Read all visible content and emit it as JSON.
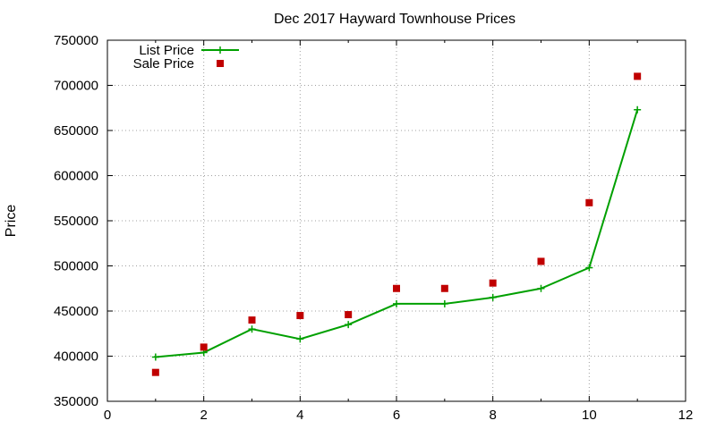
{
  "chart_data": {
    "type": "line",
    "title": "Dec 2017 Hayward Townhouse Prices",
    "xlabel": "",
    "ylabel": "Price",
    "xlim": [
      0,
      12
    ],
    "ylim": [
      350000,
      750000
    ],
    "xticks": [
      "0",
      "2",
      "4",
      "6",
      "8",
      "10",
      "12"
    ],
    "yticks": [
      "350000",
      "400000",
      "450000",
      "500000",
      "550000",
      "600000",
      "650000",
      "700000",
      "750000"
    ],
    "grid": true,
    "legend_position": "top-left",
    "series": [
      {
        "name": "List Price",
        "style": "linespoints",
        "marker": "plus",
        "color": "#00a000",
        "x": [
          1,
          2,
          3,
          4,
          5,
          6,
          7,
          8,
          9,
          10,
          11
        ],
        "y": [
          399000,
          404000,
          430000,
          419000,
          435000,
          458000,
          458000,
          465000,
          475000,
          498000,
          673000
        ]
      },
      {
        "name": "Sale Price",
        "style": "points",
        "marker": "square",
        "color": "#c00000",
        "x": [
          1,
          2,
          3,
          4,
          5,
          6,
          7,
          8,
          9,
          10,
          11
        ],
        "y": [
          382000,
          410000,
          440000,
          445000,
          446000,
          475000,
          475000,
          481000,
          505000,
          570000,
          710000
        ]
      }
    ]
  }
}
